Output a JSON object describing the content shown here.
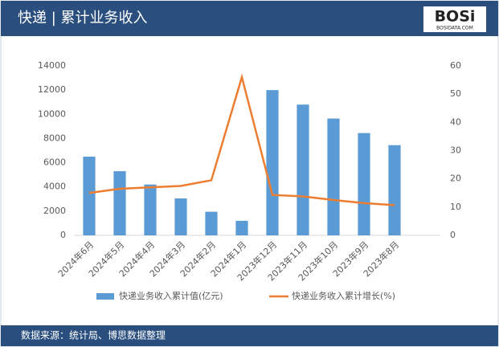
{
  "header": {
    "logo": "BOSi",
    "logo_sub": "BOSIDATA.COM"
  },
  "footer": {
    "source": "数据来源：统计局、博思数据整理"
  },
  "chart_data": {
    "type": "bar-line",
    "title": "快递 | 累计业务收入",
    "categories": [
      "2024年6月",
      "2024年5月",
      "2024年4月",
      "2024年3月",
      "2024年2月",
      "2024年1月",
      "2023年12月",
      "2023年11月",
      "2023年10月",
      "2023年9月",
      "2023年8月",
      null
    ],
    "series": [
      {
        "name": "快递业务收入累计值(亿元)",
        "type": "bar",
        "color": "#5b9bd5",
        "values": [
          6500,
          5300,
          4200,
          3050,
          1950,
          1200,
          12000,
          10800,
          9650,
          8450,
          7450,
          null
        ]
      },
      {
        "name": "快递业务收入累计增长(%)",
        "type": "line",
        "axis": "y2",
        "color": "#ed7d31",
        "values": [
          15,
          16.5,
          17,
          17.5,
          19.5,
          56,
          14.3,
          13.8,
          12.5,
          11.4,
          10.7,
          null
        ]
      }
    ],
    "ylim": [
      0,
      14000
    ],
    "yticks": [
      0,
      2000,
      4000,
      6000,
      8000,
      10000,
      12000,
      14000
    ],
    "y2lim": [
      0,
      60
    ],
    "y2ticks": [
      0,
      10,
      20,
      30,
      40,
      50,
      60
    ],
    "legend": "bottom"
  }
}
